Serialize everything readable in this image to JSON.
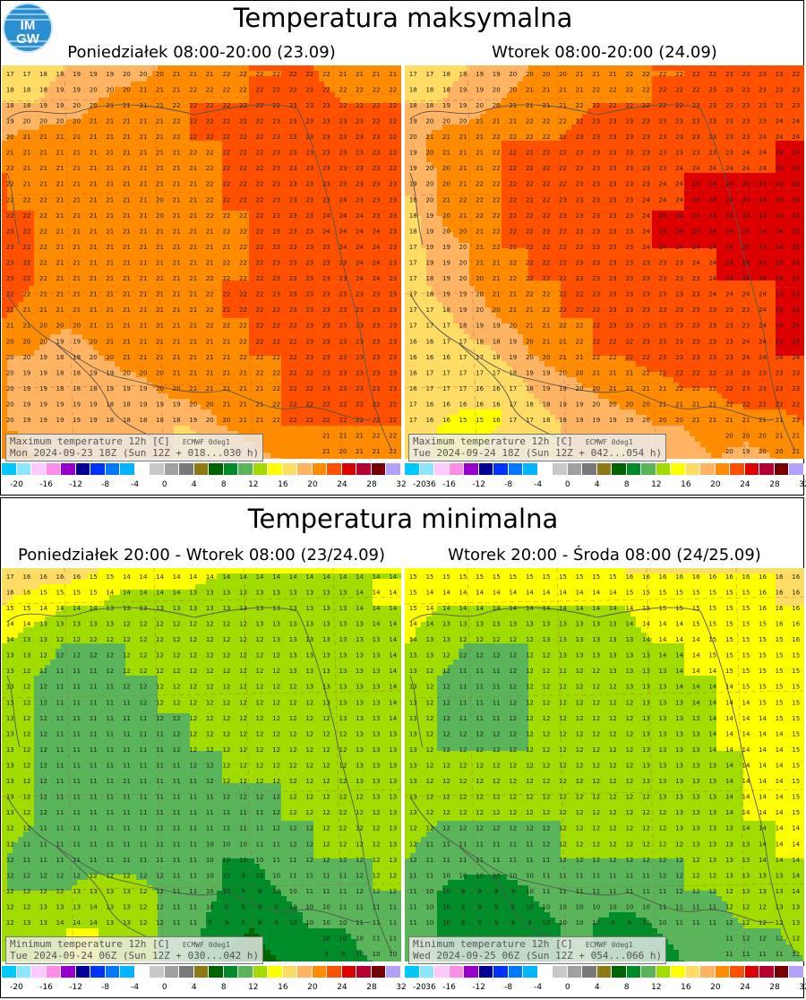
{
  "logo": {
    "top": "IM",
    "bottom": "GW"
  },
  "sections": [
    {
      "title": "Temperatura maksymalna",
      "panels": [
        {
          "title": "Poniedziałek 08:00-20:00 (23.09)",
          "info_line1": "Maximum temperature 12h [C]",
          "source": "ECMWF 0deg1",
          "info_line2": "Mon 2024-09-23 18Z (Sun 12Z + 018...030 h)"
        },
        {
          "title": "Wtorek 08:00-20:00 (24.09)",
          "info_line1": "Maximum temperature 12h [C]",
          "source": "ECMWF 0deg1",
          "info_line2": "Tue 2024-09-24 18Z (Sun 12Z + 042...054 h)"
        }
      ]
    },
    {
      "title": "Temperatura minimalna",
      "panels": [
        {
          "title": "Poniedziałek 20:00 - Wtorek 08:00 (23/24.09)",
          "info_line1": "Minimum temperature 12h [C]",
          "source": "ECMWF 0deg1",
          "info_line2": "Tue 2024-09-24 06Z (Sun 12Z + 030...042 h)"
        },
        {
          "title": "Wtorek 20:00 - Środa 08:00 (24/25.09)",
          "info_line1": "Minimum temperature 12h [C]",
          "source": "ECMWF 0deg1",
          "info_line2": "Wed 2024-09-25 06Z (Sun 12Z + 054...066 h)"
        }
      ]
    }
  ],
  "scale": {
    "colors": [
      "#00c8ff",
      "#8ce6ff",
      "#ffc8ff",
      "#ff8ce6",
      "#9600c8",
      "#000096",
      "#0032ff",
      "#0078ff",
      "#00b4ff",
      "#ffffff",
      "#c8c8c8",
      "#a0a0a0",
      "#787878",
      "#8c7814",
      "#006400",
      "#008c28",
      "#5ab45a",
      "#a0dc00",
      "#ffff00",
      "#ffdc64",
      "#ffb464",
      "#ff8c00",
      "#ff5000",
      "#dc0000",
      "#b40032",
      "#780000",
      "#b4a0ff"
    ],
    "ticks": [
      "-20",
      "-16",
      "-12",
      "-8",
      "-4",
      "0",
      "4",
      "8",
      "12",
      "16",
      "20",
      "24",
      "28",
      "32",
      "36"
    ]
  },
  "maps": [
    {
      "name": "tmax-mon",
      "values": [
        [
          17,
          17,
          18,
          19,
          19,
          20,
          21,
          21,
          22,
          22,
          22,
          21,
          21,
          21
        ],
        [
          18,
          18,
          19,
          20,
          21,
          21,
          22,
          22,
          22,
          22,
          23,
          22,
          22,
          22
        ],
        [
          20,
          21,
          21,
          21,
          21,
          21,
          22,
          22,
          22,
          23,
          23,
          23,
          23,
          22
        ],
        [
          22,
          21,
          21,
          21,
          21,
          21,
          21,
          22,
          22,
          23,
          23,
          23,
          23,
          22
        ],
        [
          22,
          22,
          21,
          21,
          21,
          20,
          21,
          22,
          22,
          23,
          23,
          24,
          23,
          23
        ],
        [
          23,
          22,
          21,
          21,
          21,
          21,
          21,
          21,
          22,
          23,
          23,
          24,
          24,
          23
        ],
        [
          23,
          22,
          21,
          21,
          21,
          21,
          21,
          22,
          22,
          23,
          23,
          23,
          24,
          23
        ],
        [
          22,
          21,
          21,
          21,
          21,
          21,
          21,
          22,
          22,
          22,
          23,
          23,
          23,
          23
        ],
        [
          20,
          20,
          18,
          20,
          21,
          21,
          21,
          21,
          22,
          22,
          23,
          23,
          23,
          23
        ],
        [
          20,
          19,
          18,
          18,
          19,
          20,
          21,
          21,
          21,
          22,
          22,
          23,
          23,
          23
        ],
        [
          20,
          19,
          19,
          19,
          18,
          18,
          18,
          20,
          21,
          22,
          22,
          22,
          22,
          22
        ],
        [
          22,
          20,
          19,
          20,
          20,
          19,
          17,
          16,
          19,
          20,
          21,
          20,
          21,
          22
        ]
      ]
    },
    {
      "name": "tmax-tue",
      "values": [
        [
          17,
          17,
          18,
          19,
          20,
          20,
          21,
          21,
          22,
          22,
          22,
          23,
          23,
          22
        ],
        [
          18,
          18,
          19,
          20,
          21,
          21,
          22,
          22,
          22,
          22,
          23,
          23,
          23,
          23
        ],
        [
          19,
          21,
          21,
          22,
          22,
          22,
          23,
          23,
          23,
          23,
          23,
          23,
          24,
          24
        ],
        [
          19,
          20,
          21,
          22,
          22,
          22,
          23,
          23,
          23,
          24,
          24,
          24,
          24,
          24
        ],
        [
          17,
          20,
          22,
          22,
          22,
          23,
          23,
          23,
          24,
          24,
          24,
          24,
          24,
          24
        ],
        [
          17,
          19,
          20,
          22,
          22,
          22,
          23,
          23,
          24,
          24,
          24,
          25,
          24,
          25
        ],
        [
          16,
          19,
          20,
          21,
          22,
          22,
          23,
          23,
          23,
          23,
          24,
          24,
          24,
          24
        ],
        [
          17,
          17,
          19,
          20,
          21,
          22,
          22,
          23,
          23,
          23,
          23,
          23,
          24,
          24
        ],
        [
          16,
          16,
          17,
          18,
          20,
          21,
          22,
          22,
          23,
          23,
          23,
          24,
          24,
          24
        ],
        [
          16,
          17,
          17,
          16,
          18,
          19,
          20,
          21,
          21,
          22,
          22,
          23,
          23,
          23
        ],
        [
          17,
          16,
          15,
          16,
          17,
          18,
          19,
          19,
          20,
          20,
          21,
          21,
          21,
          22
        ],
        [
          17,
          16,
          16,
          17,
          18,
          18,
          18,
          17,
          18,
          19,
          20,
          19,
          20,
          21
        ]
      ]
    },
    {
      "name": "tmin-tuesday-morning",
      "values": [
        [
          17,
          17,
          17,
          16,
          15,
          15,
          15,
          14,
          14,
          14,
          14,
          14,
          14,
          14
        ],
        [
          16,
          15,
          14,
          14,
          13,
          13,
          13,
          13,
          13,
          13,
          13,
          13,
          14,
          14
        ],
        [
          14,
          13,
          12,
          12,
          12,
          12,
          12,
          12,
          12,
          13,
          13,
          13,
          13,
          14
        ],
        [
          13,
          12,
          11,
          11,
          12,
          12,
          12,
          12,
          12,
          12,
          13,
          13,
          13,
          14
        ],
        [
          13,
          12,
          11,
          11,
          11,
          12,
          12,
          12,
          12,
          12,
          12,
          13,
          13,
          14
        ],
        [
          13,
          12,
          11,
          11,
          11,
          11,
          12,
          12,
          12,
          12,
          12,
          12,
          13,
          13
        ],
        [
          13,
          12,
          11,
          11,
          11,
          11,
          11,
          12,
          12,
          12,
          12,
          12,
          13,
          13
        ],
        [
          13,
          12,
          11,
          11,
          11,
          11,
          11,
          11,
          11,
          12,
          12,
          12,
          12,
          13
        ],
        [
          12,
          11,
          11,
          11,
          11,
          11,
          11,
          10,
          10,
          11,
          12,
          12,
          12,
          13
        ],
        [
          12,
          12,
          12,
          13,
          13,
          12,
          11,
          10,
          9,
          10,
          11,
          11,
          12,
          12
        ],
        [
          12,
          13,
          14,
          14,
          13,
          12,
          11,
          9,
          8,
          9,
          10,
          10,
          11,
          11
        ],
        [
          13,
          14,
          14,
          14,
          14,
          12,
          10,
          8,
          7,
          8,
          9,
          9,
          10,
          10
        ]
      ]
    },
    {
      "name": "tmin-wednesday-morning",
      "values": [
        [
          15,
          15,
          15,
          15,
          15,
          15,
          15,
          16,
          16,
          16,
          16,
          16,
          16,
          16
        ],
        [
          15,
          14,
          14,
          14,
          14,
          14,
          14,
          14,
          15,
          15,
          15,
          15,
          16,
          16
        ],
        [
          14,
          13,
          12,
          12,
          12,
          13,
          13,
          13,
          14,
          14,
          15,
          15,
          15,
          16
        ],
        [
          13,
          12,
          11,
          11,
          12,
          12,
          12,
          13,
          13,
          14,
          14,
          15,
          15,
          15
        ],
        [
          13,
          12,
          11,
          11,
          12,
          12,
          12,
          12,
          13,
          13,
          14,
          14,
          15,
          15
        ],
        [
          13,
          12,
          12,
          12,
          12,
          12,
          12,
          12,
          13,
          13,
          14,
          14,
          14,
          15
        ],
        [
          13,
          12,
          12,
          12,
          12,
          12,
          12,
          12,
          13,
          13,
          13,
          14,
          14,
          15
        ],
        [
          13,
          12,
          12,
          12,
          12,
          12,
          12,
          12,
          12,
          13,
          13,
          14,
          14,
          15
        ],
        [
          12,
          11,
          11,
          11,
          11,
          12,
          12,
          12,
          12,
          12,
          13,
          13,
          14,
          14
        ],
        [
          11,
          10,
          9,
          9,
          10,
          11,
          11,
          11,
          11,
          12,
          12,
          13,
          13,
          14
        ],
        [
          11,
          10,
          9,
          9,
          9,
          10,
          10,
          9,
          10,
          11,
          11,
          12,
          12,
          13
        ],
        [
          11,
          10,
          10,
          9,
          9,
          10,
          10,
          9,
          8,
          10,
          10,
          11,
          11,
          12
        ]
      ]
    }
  ]
}
